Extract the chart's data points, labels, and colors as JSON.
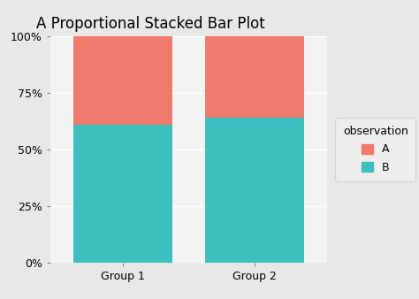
{
  "title": "A Proportional Stacked Bar Plot",
  "groups": [
    "Group 1",
    "Group 2"
  ],
  "B_values": [
    0.61,
    0.64
  ],
  "A_values": [
    0.39,
    0.36
  ],
  "color_A": "#F07B6C",
  "color_B": "#3DBFBF",
  "bg_color": "#E8E8E8",
  "panel_bg": "#E8E8E8",
  "grid_color": "#FFFFFF",
  "bar_width": 0.75,
  "yticks": [
    0.0,
    0.25,
    0.5,
    0.75,
    1.0
  ],
  "ytick_labels": [
    "0%",
    "25%",
    "50%",
    "75%",
    "100%"
  ],
  "legend_title": "observation",
  "legend_labels": [
    "A",
    "B"
  ],
  "title_fontsize": 12,
  "tick_fontsize": 9,
  "legend_fontsize": 9
}
